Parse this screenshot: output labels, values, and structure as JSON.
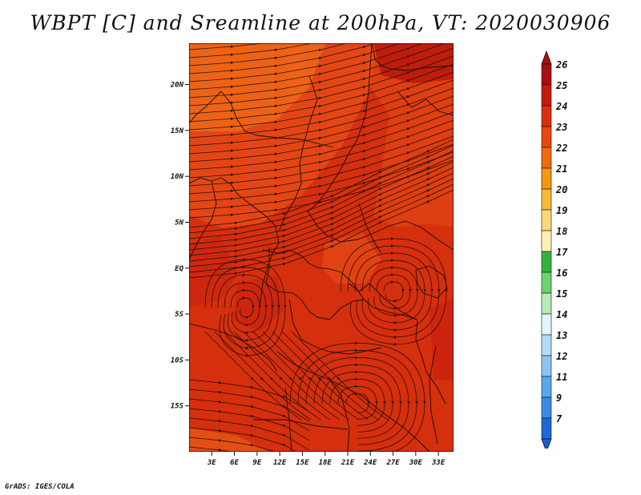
{
  "title": "WBPT [C] and Sreamline at 200hPa, VT: 2020030906",
  "footer": "GrADS: IGES/COLA",
  "map": {
    "variable": "WBPT [C]",
    "level": "200hPa",
    "valid_time": "2020030906",
    "lon_range": [
      0,
      35
    ],
    "lat_range": [
      -20,
      24.5
    ],
    "lat_ticks": [
      {
        "value": 20,
        "label": "20N"
      },
      {
        "value": 15,
        "label": "15N"
      },
      {
        "value": 10,
        "label": "10N"
      },
      {
        "value": 5,
        "label": "5N"
      },
      {
        "value": 0,
        "label": "EQ"
      },
      {
        "value": -5,
        "label": "5S"
      },
      {
        "value": -10,
        "label": "10S"
      },
      {
        "value": -15,
        "label": "15S"
      }
    ],
    "lon_ticks": [
      {
        "value": 3,
        "label": "3E"
      },
      {
        "value": 6,
        "label": "6E"
      },
      {
        "value": 9,
        "label": "9E"
      },
      {
        "value": 12,
        "label": "12E"
      },
      {
        "value": 15,
        "label": "15E"
      },
      {
        "value": 18,
        "label": "18E"
      },
      {
        "value": 21,
        "label": "21E"
      },
      {
        "value": 24,
        "label": "24E"
      },
      {
        "value": 27,
        "label": "27E"
      },
      {
        "value": 30,
        "label": "30E"
      },
      {
        "value": 33,
        "label": "33E"
      }
    ],
    "field_colors": {
      "base": "#d52f0e",
      "warm_band": "#e54a15",
      "hot_patch": "#c81f10",
      "north_orange": "#ee6a18",
      "northeast_dark": "#bb1a0c"
    },
    "streamline_color": "#1a0c05"
  },
  "colorbar": {
    "levels": [
      {
        "label": "26",
        "color": "#a50f0f"
      },
      {
        "label": "25",
        "color": "#c8190f"
      },
      {
        "label": "24",
        "color": "#dc2d0f"
      },
      {
        "label": "23",
        "color": "#e8470f"
      },
      {
        "label": "22",
        "color": "#f06a10"
      },
      {
        "label": "21",
        "color": "#f59612"
      },
      {
        "label": "20",
        "color": "#f8b93a"
      },
      {
        "label": "19",
        "color": "#fbd87a"
      },
      {
        "label": "18",
        "color": "#fdf1b4"
      },
      {
        "label": "17",
        "color": "#36b23c"
      },
      {
        "label": "16",
        "color": "#6cd46c"
      },
      {
        "label": "15",
        "color": "#b6ecb4"
      },
      {
        "label": "14",
        "color": "#e2f6fb"
      },
      {
        "label": "13",
        "color": "#b4dcf8"
      },
      {
        "label": "12",
        "color": "#8cc4f4"
      },
      {
        "label": "11",
        "color": "#5aa6ee"
      },
      {
        "label": "9",
        "color": "#3a8ae6"
      },
      {
        "label": "7",
        "color": "#1f66d8"
      }
    ],
    "bottom_color": "#1f5ad2"
  }
}
